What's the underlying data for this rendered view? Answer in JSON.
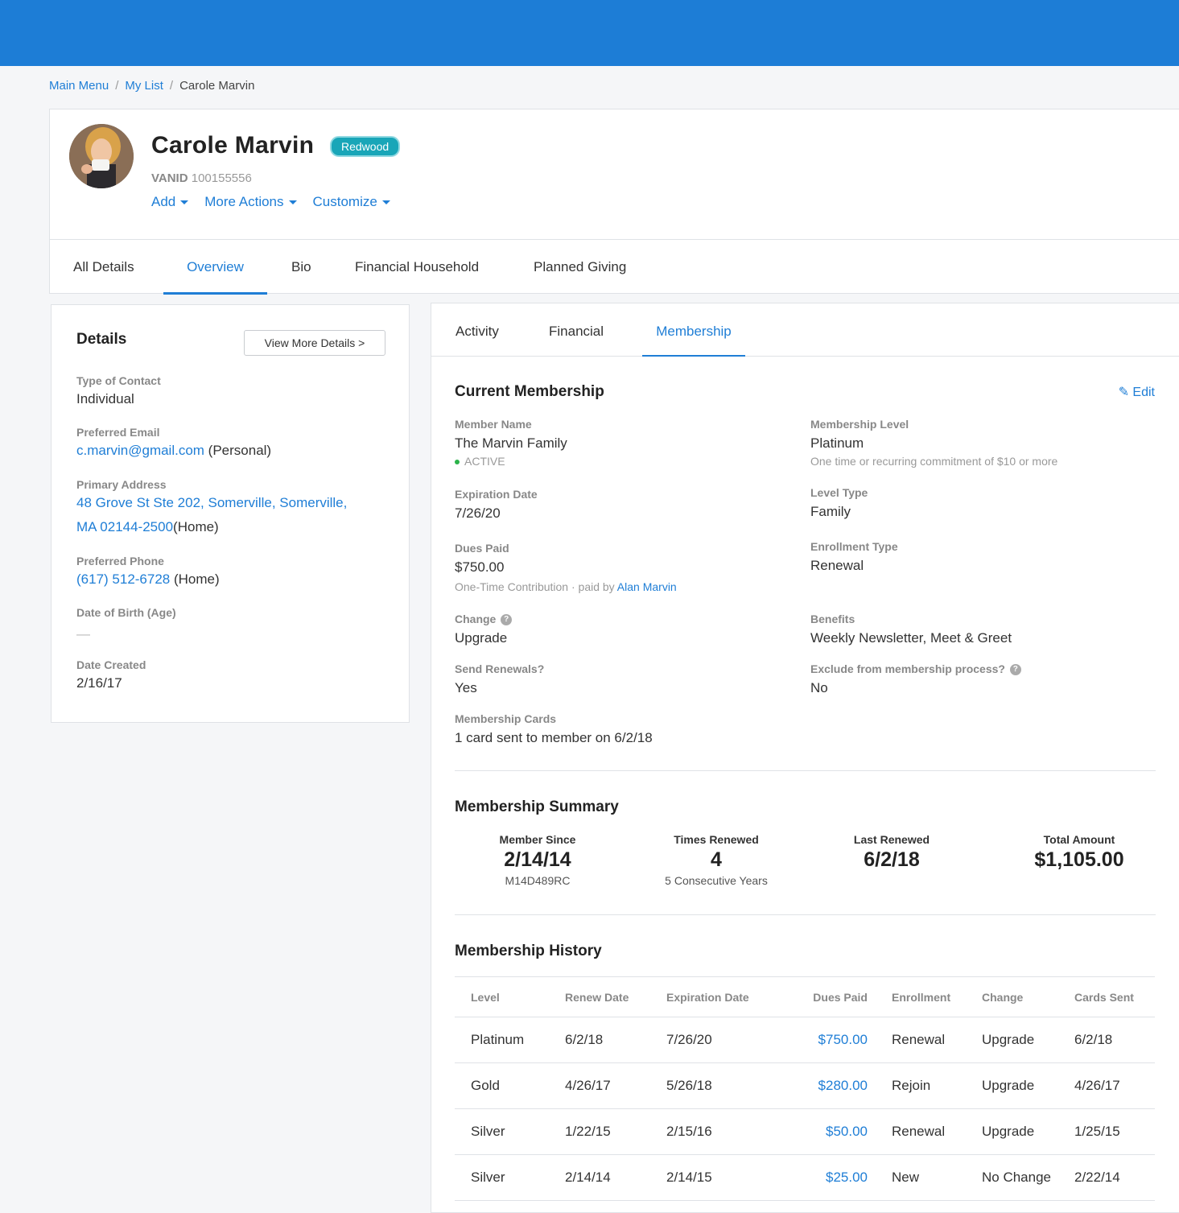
{
  "breadcrumb": {
    "items": [
      "Main Menu",
      "My List",
      "Carole Marvin"
    ]
  },
  "profile": {
    "name": "Carole Marvin",
    "badge": "Redwood",
    "vanid_label": "VANID",
    "vanid": "100155556",
    "actions": [
      "Add",
      "More Actions",
      "Customize"
    ]
  },
  "main_tabs": [
    "All Details",
    "Overview",
    "Bio",
    "Financial Household",
    "Planned Giving"
  ],
  "details": {
    "title": "Details",
    "view_more": "View More Details >",
    "type_label": "Type of Contact",
    "type_value": "Individual",
    "email_label": "Preferred Email",
    "email_value": "c.marvin@gmail.com",
    "email_suffix": " (Personal)",
    "address_label": "Primary Address",
    "address_line1": "48 Grove St Ste 202, Somerville, Somerville,",
    "address_line2": "MA 02144-2500",
    "address_suffix": "(Home)",
    "phone_label": "Preferred Phone",
    "phone_value": "(617) 512-6728",
    "phone_suffix": " (Home)",
    "dob_label": "Date of Birth (Age)",
    "dob_value": "—",
    "created_label": "Date Created",
    "created_value": "2/16/17"
  },
  "sub_tabs": [
    "Activity",
    "Financial",
    "Membership"
  ],
  "current": {
    "title": "Current Membership",
    "edit": "Edit",
    "member_name_label": "Member Name",
    "member_name": "The Marvin Family",
    "status": "ACTIVE",
    "level_label": "Membership Level",
    "level": "Platinum",
    "level_desc": "One time or recurring commitment of $10 or more",
    "exp_label": "Expiration Date",
    "exp": "7/26/20",
    "level_type_label": "Level Type",
    "level_type": "Family",
    "dues_label": "Dues Paid",
    "dues": "$750.00",
    "dues_desc": "One-Time Contribution · paid by ",
    "dues_payer": "Alan Marvin",
    "enroll_label": "Enrollment Type",
    "enroll": "Renewal",
    "change_label": "Change",
    "change": "Upgrade",
    "benefits_label": "Benefits",
    "benefits": "Weekly Newsletter, Meet & Greet",
    "renewals_label": "Send Renewals?",
    "renewals": "Yes",
    "exclude_label": "Exclude from membership process?",
    "exclude": "No",
    "cards_label": "Membership Cards",
    "cards": "1 card sent to member on 6/2/18"
  },
  "summary": {
    "title": "Membership Summary",
    "stats": [
      {
        "label": "Member Since",
        "value": "2/14/14",
        "sub": "M14D489RC"
      },
      {
        "label": "Times Renewed",
        "value": "4",
        "sub": "5 Consecutive Years"
      },
      {
        "label": "Last Renewed",
        "value": "6/2/18",
        "sub": ""
      },
      {
        "label": "Total Amount",
        "value": "$1,105.00",
        "sub": ""
      }
    ]
  },
  "history": {
    "title": "Membership History",
    "columns": [
      "Level",
      "Renew Date",
      "Expiration Date",
      "Dues Paid",
      "Enrollment",
      "Change",
      "Cards Sent"
    ],
    "rows": [
      [
        "Platinum",
        "6/2/18",
        "7/26/20",
        "$750.00",
        "Renewal",
        "Upgrade",
        "6/2/18"
      ],
      [
        "Gold",
        "4/26/17",
        "5/26/18",
        "$280.00",
        "Rejoin",
        "Upgrade",
        "4/26/17"
      ],
      [
        "Silver",
        "1/22/15",
        "2/15/16",
        "$50.00",
        "Renewal",
        "Upgrade",
        "1/25/15"
      ],
      [
        "Silver",
        "2/14/14",
        "2/14/15",
        "$25.00",
        "New",
        "No Change",
        "2/22/14"
      ]
    ]
  },
  "colors": {
    "brand": "#1d7dd6",
    "link": "#1f7ed6",
    "badge": "#19a6b8",
    "active": "#2bb34a"
  }
}
